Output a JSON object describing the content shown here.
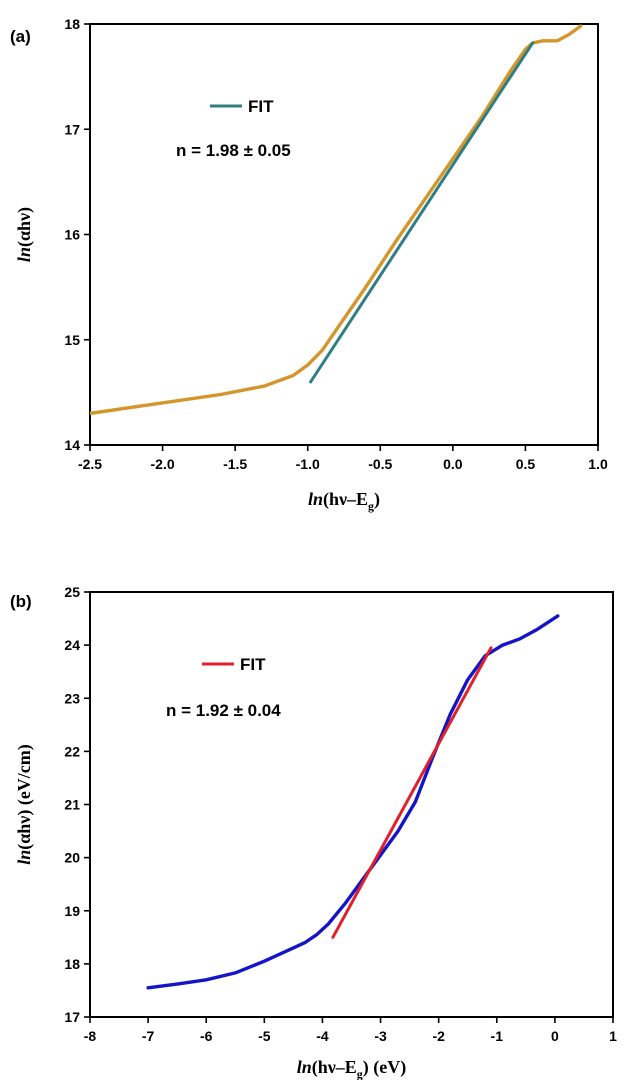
{
  "chart_data": [
    {
      "panel": "(a)",
      "type": "line",
      "xlim": [
        -2.5,
        1.0
      ],
      "ylim": [
        14,
        18
      ],
      "xticks": [
        -2.5,
        -2.0,
        -1.5,
        -1.0,
        -0.5,
        0.0,
        0.5,
        1.0
      ],
      "xtick_labels": [
        "-2.5",
        "-2.0",
        "-1.5",
        "-1.0",
        "-0.5",
        "0.0",
        "0.5",
        "1.0"
      ],
      "yticks": [
        14,
        15,
        16,
        17,
        18
      ],
      "ytick_labels": [
        "14",
        "15",
        "16",
        "17",
        "18"
      ],
      "xlabel": {
        "italic": "ln",
        "rest": "(hν–E",
        "sub": "g",
        "tail": ")"
      },
      "ylabel": {
        "italic": "ln",
        "rest": "(αhν)"
      },
      "legend": {
        "label": "FIT",
        "position": "top-left"
      },
      "annotation": "n = 1.98 ± 0.05",
      "series": [
        {
          "role": "data",
          "color": "#D4962A",
          "x": [
            -2.5,
            -2.2,
            -1.9,
            -1.6,
            -1.3,
            -1.1,
            -1.0,
            -0.9,
            -0.8,
            -0.6,
            -0.4,
            -0.2,
            0.0,
            0.2,
            0.4,
            0.5,
            0.55,
            0.62,
            0.72,
            0.8,
            0.88
          ],
          "y": [
            14.3,
            14.36,
            14.42,
            14.48,
            14.56,
            14.66,
            14.76,
            14.9,
            15.1,
            15.5,
            15.92,
            16.32,
            16.72,
            17.12,
            17.56,
            17.76,
            17.82,
            17.84,
            17.84,
            17.9,
            17.98
          ]
        },
        {
          "role": "fit",
          "name": "FIT",
          "color": "#2E7E86",
          "x": [
            -0.98,
            0.55
          ],
          "y": [
            14.6,
            17.82
          ]
        }
      ]
    },
    {
      "panel": "(b)",
      "type": "line",
      "xlim": [
        -8,
        1
      ],
      "ylim": [
        17,
        25
      ],
      "xticks": [
        -8,
        -7,
        -6,
        -5,
        -4,
        -3,
        -2,
        -1,
        0,
        1
      ],
      "xtick_labels": [
        "-8",
        "-7",
        "-6",
        "-5",
        "-4",
        "-3",
        "-2",
        "-1",
        "0",
        "1"
      ],
      "yticks": [
        17,
        18,
        19,
        20,
        21,
        22,
        23,
        24,
        25
      ],
      "ytick_labels": [
        "17",
        "18",
        "19",
        "20",
        "21",
        "22",
        "23",
        "24",
        "25"
      ],
      "xlabel": {
        "italic": "ln",
        "rest": "(hν–E",
        "sub": "g",
        "tail": ") (eV)"
      },
      "ylabel": {
        "italic": "ln",
        "rest": "(αhν) (eV/cm)"
      },
      "legend": {
        "label": "FIT",
        "position": "top-left"
      },
      "annotation": "n = 1.92 ± 0.04",
      "series": [
        {
          "role": "data",
          "color": "#1515C8",
          "x": [
            -7.0,
            -6.5,
            -6.0,
            -5.5,
            -5.0,
            -4.6,
            -4.3,
            -4.1,
            -3.9,
            -3.6,
            -3.3,
            -3.0,
            -2.7,
            -2.4,
            -2.1,
            -1.8,
            -1.5,
            -1.2,
            -0.9,
            -0.6,
            -0.3,
            0.05
          ],
          "y": [
            17.55,
            17.62,
            17.7,
            17.83,
            18.05,
            18.25,
            18.4,
            18.55,
            18.75,
            19.15,
            19.6,
            20.05,
            20.5,
            21.05,
            21.9,
            22.7,
            23.35,
            23.8,
            24.0,
            24.12,
            24.3,
            24.55
          ]
        },
        {
          "role": "fit",
          "name": "FIT",
          "color": "#E0202A",
          "x": [
            -3.82,
            -1.1
          ],
          "y": [
            18.5,
            23.95
          ]
        }
      ]
    }
  ]
}
